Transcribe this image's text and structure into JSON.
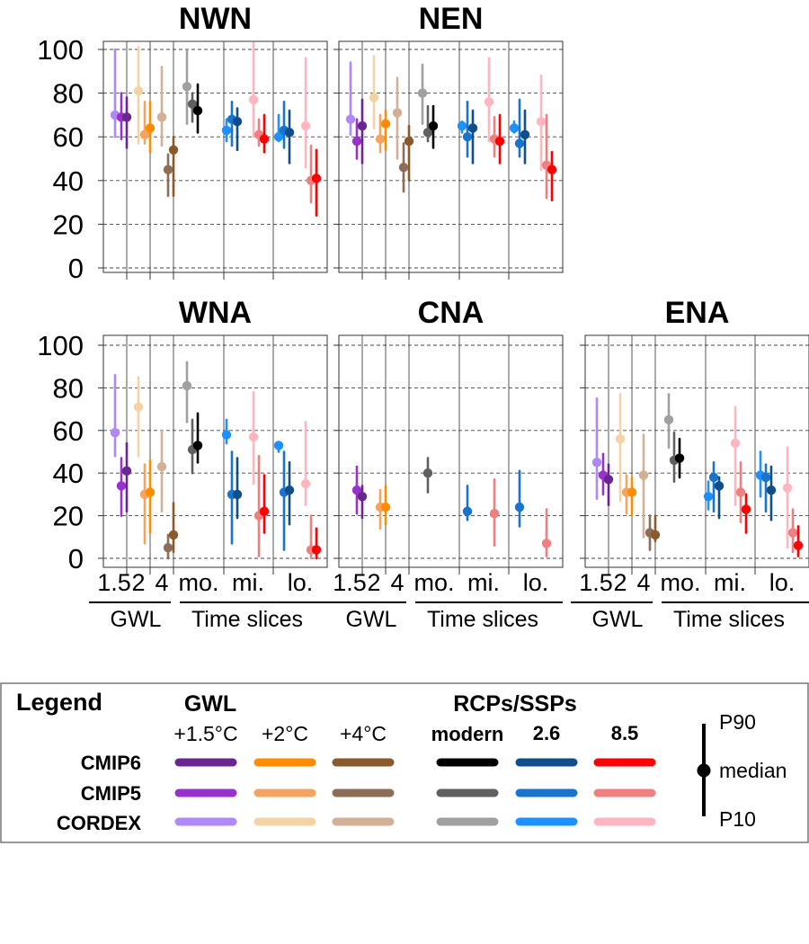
{
  "chart_data": {
    "type": "errorbar",
    "ylim": [
      0,
      100
    ],
    "yticks": [
      0,
      20,
      40,
      60,
      80,
      100
    ],
    "xticks": [
      "1.5",
      "2",
      "4",
      "mo.",
      "mi.",
      "lo."
    ],
    "group_labels": [
      "GWL",
      "Time slices"
    ],
    "colors": {
      "gwl15": {
        "CMIP6": "#6a2690",
        "CMIP5": "#9932cc",
        "CORDEX": "#b088f8"
      },
      "gwl2": {
        "CMIP6": "#ff8c00",
        "CMIP5": "#f4a460",
        "CORDEX": "#f3d3a4"
      },
      "gwl4": {
        "CMIP6": "#8b5a2b",
        "CMIP5": "#8c6e58",
        "CORDEX": "#d2b096"
      },
      "modern": {
        "CMIP6": "#000000",
        "CMIP5": "#606060",
        "CORDEX": "#a0a0a0"
      },
      "ssp26": {
        "CMIP6": "#104e8b",
        "CMIP5": "#1874cd",
        "CORDEX": "#1e90ff"
      },
      "ssp85": {
        "CMIP6": "#ff0000",
        "CMIP5": "#f08080",
        "CORDEX": "#ffb6c1"
      }
    },
    "panels": [
      {
        "title": "NWN",
        "points": [
          {
            "g": 0,
            "s": "gwl15",
            "e": "CORDEX",
            "m": 70,
            "lo": 60,
            "hi": 100
          },
          {
            "g": 0,
            "s": "gwl15",
            "e": "CMIP5",
            "m": 69,
            "lo": 59,
            "hi": 80
          },
          {
            "g": 0,
            "s": "gwl15",
            "e": "CMIP6",
            "m": 69,
            "lo": 55,
            "hi": 78
          },
          {
            "g": 1,
            "s": "gwl2",
            "e": "CORDEX",
            "m": 81,
            "lo": 57,
            "hi": 101
          },
          {
            "g": 1,
            "s": "gwl2",
            "e": "CMIP5",
            "m": 61,
            "lo": 57,
            "hi": 76
          },
          {
            "g": 1,
            "s": "gwl2",
            "e": "CMIP6",
            "m": 64,
            "lo": 53,
            "hi": 76
          },
          {
            "g": 2,
            "s": "gwl4",
            "e": "CORDEX",
            "m": 69,
            "lo": 56,
            "hi": 92
          },
          {
            "g": 2,
            "s": "gwl4",
            "e": "CMIP5",
            "m": 45,
            "lo": 33,
            "hi": 52
          },
          {
            "g": 2,
            "s": "gwl4",
            "e": "CMIP6",
            "m": 54,
            "lo": 33,
            "hi": 60
          },
          {
            "g": 3,
            "s": "modern",
            "e": "CORDEX",
            "m": 83,
            "lo": 66,
            "hi": 100
          },
          {
            "g": 3,
            "s": "modern",
            "e": "CMIP5",
            "m": 75,
            "lo": 67,
            "hi": 80
          },
          {
            "g": 3,
            "s": "modern",
            "e": "CMIP6",
            "m": 72,
            "lo": 62,
            "hi": 84
          },
          {
            "g": 4,
            "s": "ssp26",
            "e": "CORDEX",
            "m": 63,
            "lo": 58,
            "hi": 68
          },
          {
            "g": 4,
            "s": "ssp26",
            "e": "CMIP5",
            "m": 68,
            "lo": 56,
            "hi": 76
          },
          {
            "g": 4,
            "s": "ssp26",
            "e": "CMIP6",
            "m": 67,
            "lo": 54,
            "hi": 73
          },
          {
            "g": 4,
            "s": "ssp85",
            "e": "CORDEX",
            "m": 77,
            "lo": 60,
            "hi": 103
          },
          {
            "g": 4,
            "s": "ssp85",
            "e": "CMIP5",
            "m": 61,
            "lo": 56,
            "hi": 68
          },
          {
            "g": 4,
            "s": "ssp85",
            "e": "CMIP6",
            "m": 59,
            "lo": 53,
            "hi": 70
          },
          {
            "g": 5,
            "s": "ssp26",
            "e": "CORDEX",
            "m": 60,
            "lo": 58,
            "hi": 70
          },
          {
            "g": 5,
            "s": "ssp26",
            "e": "CMIP5",
            "m": 63,
            "lo": 55,
            "hi": 76
          },
          {
            "g": 5,
            "s": "ssp26",
            "e": "CMIP6",
            "m": 62,
            "lo": 48,
            "hi": 72
          },
          {
            "g": 5,
            "s": "ssp85",
            "e": "CORDEX",
            "m": 65,
            "lo": 46,
            "hi": 96
          },
          {
            "g": 5,
            "s": "ssp85",
            "e": "CMIP5",
            "m": 40,
            "lo": 30,
            "hi": 56
          },
          {
            "g": 5,
            "s": "ssp85",
            "e": "CMIP6",
            "m": 41,
            "lo": 24,
            "hi": 54
          }
        ]
      },
      {
        "title": "NEN",
        "points": [
          {
            "g": 0,
            "s": "gwl15",
            "e": "CORDEX",
            "m": 68,
            "lo": 61,
            "hi": 94
          },
          {
            "g": 0,
            "s": "gwl15",
            "e": "CMIP5",
            "m": 58,
            "lo": 50,
            "hi": 68
          },
          {
            "g": 0,
            "s": "gwl15",
            "e": "CMIP6",
            "m": 65,
            "lo": 48,
            "hi": 77
          },
          {
            "g": 1,
            "s": "gwl2",
            "e": "CORDEX",
            "m": 78,
            "lo": 64,
            "hi": 97
          },
          {
            "g": 1,
            "s": "gwl2",
            "e": "CMIP5",
            "m": 59,
            "lo": 53,
            "hi": 70
          },
          {
            "g": 1,
            "s": "gwl2",
            "e": "CMIP6",
            "m": 66,
            "lo": 54,
            "hi": 72
          },
          {
            "g": 2,
            "s": "gwl4",
            "e": "CORDEX",
            "m": 71,
            "lo": 50,
            "hi": 87
          },
          {
            "g": 2,
            "s": "gwl4",
            "e": "CMIP5",
            "m": 46,
            "lo": 35,
            "hi": 57
          },
          {
            "g": 2,
            "s": "gwl4",
            "e": "CMIP6",
            "m": 58,
            "lo": 40,
            "hi": 65
          },
          {
            "g": 3,
            "s": "modern",
            "e": "CORDEX",
            "m": 80,
            "lo": 66,
            "hi": 93
          },
          {
            "g": 3,
            "s": "modern",
            "e": "CMIP5",
            "m": 62,
            "lo": 58,
            "hi": 74
          },
          {
            "g": 3,
            "s": "modern",
            "e": "CMIP6",
            "m": 65,
            "lo": 55,
            "hi": 74
          },
          {
            "g": 4,
            "s": "ssp26",
            "e": "CORDEX",
            "m": 65,
            "lo": 62,
            "hi": 67
          },
          {
            "g": 4,
            "s": "ssp26",
            "e": "CMIP5",
            "m": 60,
            "lo": 51,
            "hi": 76
          },
          {
            "g": 4,
            "s": "ssp26",
            "e": "CMIP6",
            "m": 64,
            "lo": 48,
            "hi": 72
          },
          {
            "g": 4,
            "s": "ssp85",
            "e": "CORDEX",
            "m": 76,
            "lo": 58,
            "hi": 96
          },
          {
            "g": 4,
            "s": "ssp85",
            "e": "CMIP5",
            "m": 59,
            "lo": 51,
            "hi": 69
          },
          {
            "g": 4,
            "s": "ssp85",
            "e": "CMIP6",
            "m": 58,
            "lo": 48,
            "hi": 70
          },
          {
            "g": 5,
            "s": "ssp26",
            "e": "CORDEX",
            "m": 64,
            "lo": 62,
            "hi": 67
          },
          {
            "g": 5,
            "s": "ssp26",
            "e": "CMIP5",
            "m": 57,
            "lo": 51,
            "hi": 77
          },
          {
            "g": 5,
            "s": "ssp26",
            "e": "CMIP6",
            "m": 61,
            "lo": 48,
            "hi": 72
          },
          {
            "g": 5,
            "s": "ssp85",
            "e": "CORDEX",
            "m": 67,
            "lo": 45,
            "hi": 88
          },
          {
            "g": 5,
            "s": "ssp85",
            "e": "CMIP5",
            "m": 47,
            "lo": 32,
            "hi": 70
          },
          {
            "g": 5,
            "s": "ssp85",
            "e": "CMIP6",
            "m": 45,
            "lo": 31,
            "hi": 53
          }
        ]
      },
      {
        "title": "WNA",
        "points": [
          {
            "g": 0,
            "s": "gwl15",
            "e": "CORDEX",
            "m": 59,
            "lo": 48,
            "hi": 86
          },
          {
            "g": 0,
            "s": "gwl15",
            "e": "CMIP5",
            "m": 34,
            "lo": 20,
            "hi": 47
          },
          {
            "g": 0,
            "s": "gwl15",
            "e": "CMIP6",
            "m": 41,
            "lo": 22,
            "hi": 54
          },
          {
            "g": 1,
            "s": "gwl2",
            "e": "CORDEX",
            "m": 71,
            "lo": 48,
            "hi": 85
          },
          {
            "g": 1,
            "s": "gwl2",
            "e": "CMIP5",
            "m": 30,
            "lo": 7,
            "hi": 44
          },
          {
            "g": 1,
            "s": "gwl2",
            "e": "CMIP6",
            "m": 31,
            "lo": 12,
            "hi": 46
          },
          {
            "g": 2,
            "s": "gwl4",
            "e": "CORDEX",
            "m": 43,
            "lo": 22,
            "hi": 60
          },
          {
            "g": 2,
            "s": "gwl4",
            "e": "CMIP5",
            "m": 5,
            "lo": 0,
            "hi": 11
          },
          {
            "g": 2,
            "s": "gwl4",
            "e": "CMIP6",
            "m": 11,
            "lo": 3,
            "hi": 26
          },
          {
            "g": 3,
            "s": "modern",
            "e": "CORDEX",
            "m": 81,
            "lo": 64,
            "hi": 92
          },
          {
            "g": 3,
            "s": "modern",
            "e": "CMIP5",
            "m": 51,
            "lo": 40,
            "hi": 65
          },
          {
            "g": 3,
            "s": "modern",
            "e": "CMIP6",
            "m": 53,
            "lo": 45,
            "hi": 68
          },
          {
            "g": 4,
            "s": "ssp26",
            "e": "CORDEX",
            "m": 58,
            "lo": 54,
            "hi": 65
          },
          {
            "g": 4,
            "s": "ssp26",
            "e": "CMIP5",
            "m": 30,
            "lo": 7,
            "hi": 50
          },
          {
            "g": 4,
            "s": "ssp26",
            "e": "CMIP6",
            "m": 30,
            "lo": 19,
            "hi": 47
          },
          {
            "g": 4,
            "s": "ssp85",
            "e": "CORDEX",
            "m": 57,
            "lo": 35,
            "hi": 78
          },
          {
            "g": 4,
            "s": "ssp85",
            "e": "CMIP5",
            "m": 20,
            "lo": 1,
            "hi": 48
          },
          {
            "g": 4,
            "s": "ssp85",
            "e": "CMIP6",
            "m": 22,
            "lo": 12,
            "hi": 39
          },
          {
            "g": 5,
            "s": "ssp26",
            "e": "CORDEX",
            "m": 53,
            "lo": 50,
            "hi": 54
          },
          {
            "g": 5,
            "s": "ssp26",
            "e": "CMIP5",
            "m": 31,
            "lo": 4,
            "hi": 50
          },
          {
            "g": 5,
            "s": "ssp26",
            "e": "CMIP6",
            "m": 32,
            "lo": 16,
            "hi": 45
          },
          {
            "g": 5,
            "s": "ssp85",
            "e": "CORDEX",
            "m": 35,
            "lo": 25,
            "hi": 64
          },
          {
            "g": 5,
            "s": "ssp85",
            "e": "CMIP5",
            "m": 4,
            "lo": 0,
            "hi": 20
          },
          {
            "g": 5,
            "s": "ssp85",
            "e": "CMIP6",
            "m": 4,
            "lo": 0,
            "hi": 14
          }
        ]
      },
      {
        "title": "CNA",
        "points": [
          {
            "g": 0,
            "s": "gwl15",
            "e": "CMIP5",
            "m": 32,
            "lo": 21,
            "hi": 43
          },
          {
            "g": 0,
            "s": "gwl15",
            "e": "CMIP6",
            "m": 29,
            "lo": 19,
            "hi": 34
          },
          {
            "g": 1,
            "s": "gwl2",
            "e": "CMIP5",
            "m": 24,
            "lo": 14,
            "hi": 32
          },
          {
            "g": 1,
            "s": "gwl2",
            "e": "CMIP6",
            "m": 24,
            "lo": 16,
            "hi": 34
          },
          {
            "g": 3,
            "s": "modern",
            "e": "CMIP5",
            "m": 40,
            "lo": 31,
            "hi": 47
          },
          {
            "g": 4,
            "s": "ssp26",
            "e": "CMIP5",
            "m": 22,
            "lo": 18,
            "hi": 34
          },
          {
            "g": 4,
            "s": "ssp85",
            "e": "CMIP5",
            "m": 21,
            "lo": 6,
            "hi": 37
          },
          {
            "g": 5,
            "s": "ssp26",
            "e": "CMIP5",
            "m": 24,
            "lo": 15,
            "hi": 41
          },
          {
            "g": 5,
            "s": "ssp85",
            "e": "CMIP5",
            "m": 7,
            "lo": 1,
            "hi": 23
          }
        ]
      },
      {
        "title": "ENA",
        "points": [
          {
            "g": 0,
            "s": "gwl15",
            "e": "CORDEX",
            "m": 45,
            "lo": 28,
            "hi": 75
          },
          {
            "g": 0,
            "s": "gwl15",
            "e": "CMIP5",
            "m": 39,
            "lo": 30,
            "hi": 49
          },
          {
            "g": 0,
            "s": "gwl15",
            "e": "CMIP6",
            "m": 37,
            "lo": 25,
            "hi": 44
          },
          {
            "g": 1,
            "s": "gwl2",
            "e": "CORDEX",
            "m": 56,
            "lo": 27,
            "hi": 77
          },
          {
            "g": 1,
            "s": "gwl2",
            "e": "CMIP5",
            "m": 31,
            "lo": 21,
            "hi": 39
          },
          {
            "g": 1,
            "s": "gwl2",
            "e": "CMIP6",
            "m": 31,
            "lo": 20,
            "hi": 38
          },
          {
            "g": 2,
            "s": "gwl4",
            "e": "CORDEX",
            "m": 39,
            "lo": 10,
            "hi": 58
          },
          {
            "g": 2,
            "s": "gwl4",
            "e": "CMIP5",
            "m": 12,
            "lo": 4,
            "hi": 20
          },
          {
            "g": 2,
            "s": "gwl4",
            "e": "CMIP6",
            "m": 11,
            "lo": 8,
            "hi": 20
          },
          {
            "g": 3,
            "s": "modern",
            "e": "CORDEX",
            "m": 65,
            "lo": 52,
            "hi": 77
          },
          {
            "g": 3,
            "s": "modern",
            "e": "CMIP5",
            "m": 46,
            "lo": 36,
            "hi": 59
          },
          {
            "g": 3,
            "s": "modern",
            "e": "CMIP6",
            "m": 47,
            "lo": 38,
            "hi": 56
          },
          {
            "g": 4,
            "s": "ssp26",
            "e": "CORDEX",
            "m": 29,
            "lo": 23,
            "hi": 36
          },
          {
            "g": 4,
            "s": "ssp26",
            "e": "CMIP5",
            "m": 38,
            "lo": 22,
            "hi": 45
          },
          {
            "g": 4,
            "s": "ssp26",
            "e": "CMIP6",
            "m": 34,
            "lo": 19,
            "hi": 38
          },
          {
            "g": 4,
            "s": "ssp85",
            "e": "CORDEX",
            "m": 54,
            "lo": 25,
            "hi": 71
          },
          {
            "g": 4,
            "s": "ssp85",
            "e": "CMIP5",
            "m": 31,
            "lo": 17,
            "hi": 45
          },
          {
            "g": 4,
            "s": "ssp85",
            "e": "CMIP6",
            "m": 23,
            "lo": 12,
            "hi": 30
          },
          {
            "g": 5,
            "s": "ssp26",
            "e": "CORDEX",
            "m": 39,
            "lo": 29,
            "hi": 50
          },
          {
            "g": 5,
            "s": "ssp26",
            "e": "CMIP5",
            "m": 38,
            "lo": 22,
            "hi": 44
          },
          {
            "g": 5,
            "s": "ssp26",
            "e": "CMIP6",
            "m": 32,
            "lo": 18,
            "hi": 43
          },
          {
            "g": 5,
            "s": "ssp85",
            "e": "CORDEX",
            "m": 33,
            "lo": 5,
            "hi": 52
          },
          {
            "g": 5,
            "s": "ssp85",
            "e": "CMIP5",
            "m": 12,
            "lo": 3,
            "hi": 23
          },
          {
            "g": 5,
            "s": "ssp85",
            "e": "CMIP6",
            "m": 6,
            "lo": 1,
            "hi": 15
          }
        ]
      }
    ]
  },
  "legend": {
    "title": "Legend",
    "gwl_header": "GWL",
    "rcp_header": "RCPs/SSPs",
    "columns": [
      "+1.5°C",
      "+2°C",
      "+4°C",
      "modern",
      "2.6",
      "8.5"
    ],
    "rows": [
      "CMIP6",
      "CMIP5",
      "CORDEX"
    ],
    "errorbar_labels": {
      "p90": "P90",
      "median": "median",
      "p10": "P10"
    }
  }
}
